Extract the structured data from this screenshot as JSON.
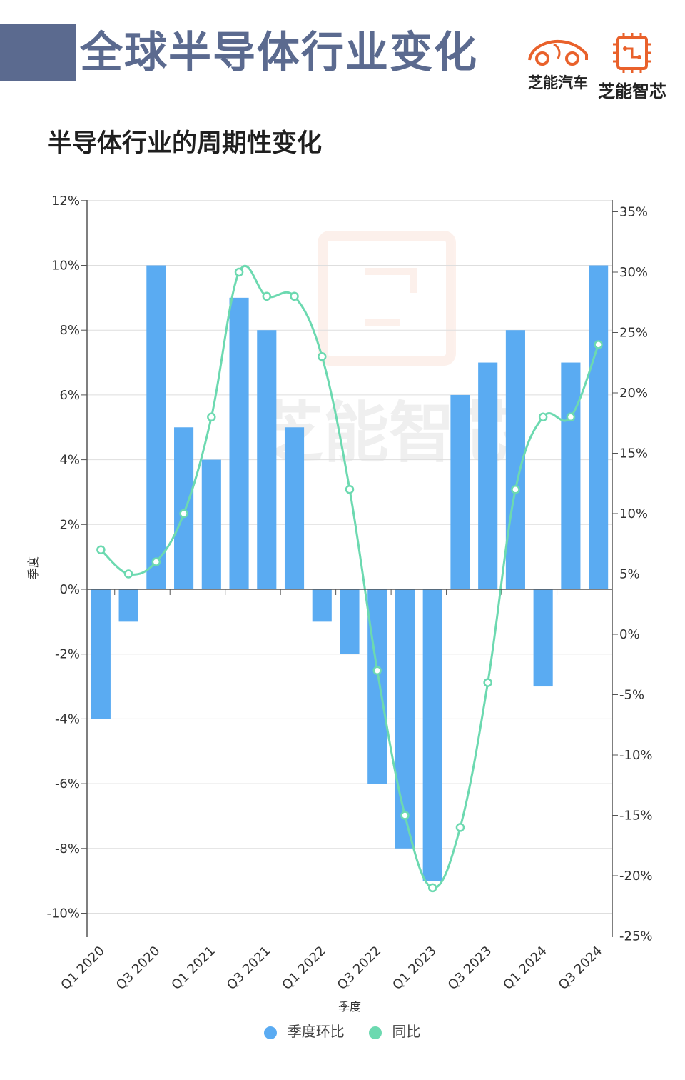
{
  "header": {
    "title": "全球半导体行业变化",
    "brand_car": "芝能汽车",
    "brand_chip": "芝能智芯"
  },
  "watermark": "芝能智芯",
  "colors": {
    "header_accent": "#5b6a8f",
    "bar": "#5aabf2",
    "line": "#6cd9b0",
    "brand_orange": "#e9612b"
  },
  "chart_data": {
    "type": "bar",
    "title": "半导体行业的周期性变化",
    "xlabel": "季度",
    "ylabel": "季度",
    "categories": [
      "Q1 2020",
      "Q2 2020",
      "Q3 2020",
      "Q4 2020",
      "Q1 2021",
      "Q2 2021",
      "Q3 2021",
      "Q4 2021",
      "Q1 2022",
      "Q2 2022",
      "Q3 2022",
      "Q4 2022",
      "Q1 2023",
      "Q2 2023",
      "Q3 2023",
      "Q4 2023",
      "Q1 2024",
      "Q2 2024",
      "Q3 2024"
    ],
    "x_tick_labels": [
      "Q1 2020",
      "Q3 2020",
      "Q1 2021",
      "Q3 2021",
      "Q1 2022",
      "Q3 2022",
      "Q1 2023",
      "Q3 2023",
      "Q1 2024",
      "Q3 2024"
    ],
    "series": [
      {
        "name": "季度环比",
        "type": "bar",
        "axis": "left",
        "values": [
          -4,
          -1,
          10,
          5,
          4,
          9,
          8,
          5,
          -1,
          -2,
          -6,
          -8,
          -9,
          6,
          7,
          8,
          -3,
          7,
          10
        ]
      },
      {
        "name": "同比",
        "type": "line",
        "axis": "right",
        "values": [
          7,
          5,
          6,
          10,
          18,
          30,
          28,
          28,
          23,
          12,
          -3,
          -15,
          -21,
          -16,
          -4,
          12,
          18,
          18,
          24
        ]
      }
    ],
    "ylim": [
      -10,
      12
    ],
    "y2lim": [
      -25,
      35
    ],
    "y_ticks": [
      12,
      10,
      8,
      6,
      4,
      2,
      0,
      -2,
      -4,
      -6,
      -8,
      -10
    ],
    "y2_ticks": [
      35,
      30,
      25,
      20,
      15,
      10,
      5,
      0,
      -5,
      -10,
      -15,
      -20,
      -25
    ],
    "y_tick_labels": [
      "12%",
      "10%",
      "8%",
      "6%",
      "4%",
      "2%",
      "0%",
      "-2%",
      "-4%",
      "-6%",
      "-8%",
      "-10%"
    ],
    "y2_tick_labels": [
      "35%",
      "30%",
      "25%",
      "20%",
      "15%",
      "10%",
      "5%",
      "0%",
      "-5%",
      "-10%",
      "-15%",
      "-20%",
      "-25%"
    ],
    "grid": true,
    "legend_position": "bottom"
  }
}
